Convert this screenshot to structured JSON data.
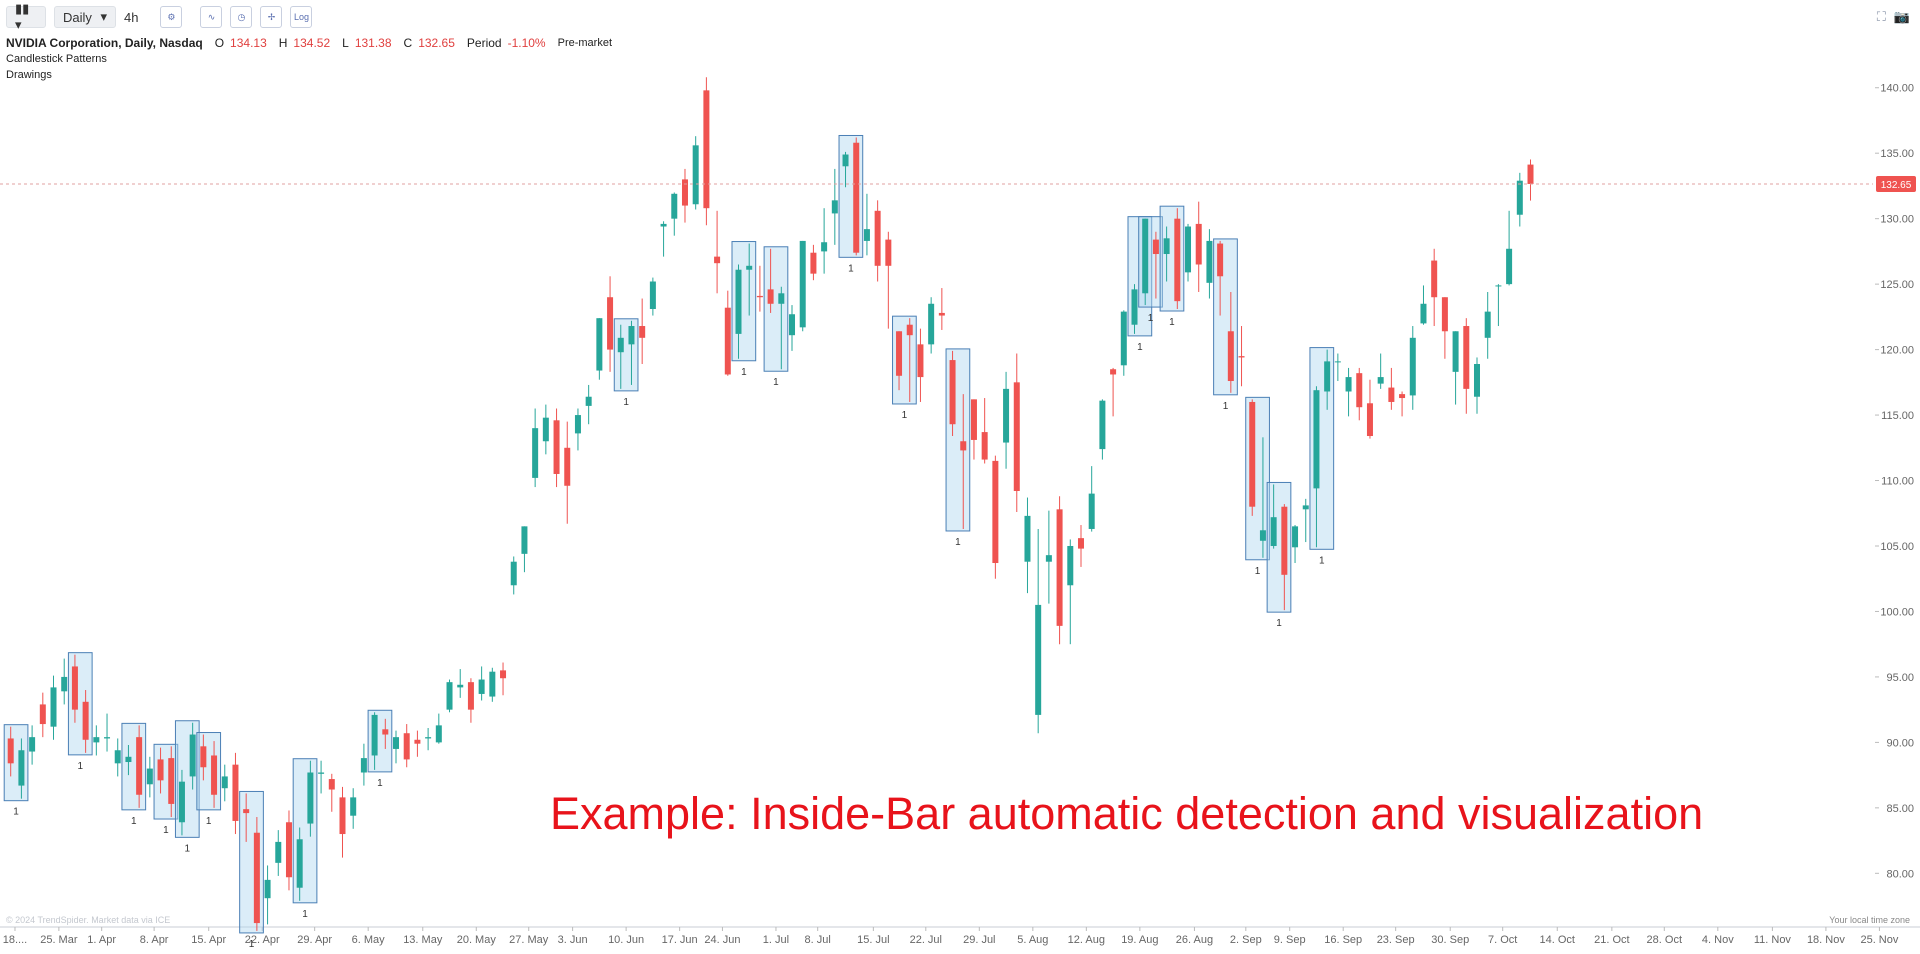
{
  "toolbar": {
    "interval": "Daily",
    "alt_interval": "4h",
    "log": "Log"
  },
  "legend": {
    "title": "NVIDIA Corporation, Daily, Nasdaq",
    "open_label": "O",
    "high_label": "H",
    "low_label": "L",
    "close_label": "C",
    "period_label": "Period",
    "period_change": "-1.10%",
    "session": "Pre-market",
    "indicators": [
      "Candlestick Patterns",
      "Drawings"
    ]
  },
  "chart_data": {
    "type": "candlestick",
    "annotation": "Example: Inside-Bar automatic detection and visualization",
    "footer_left": "© 2024 TrendSpider. Market data via ICE",
    "footer_right": "Your local time zone",
    "up_color": "#26a69a",
    "down_color": "#ef5350",
    "pattern_color": "#4a7fb5",
    "grid": false,
    "last_price_line": true,
    "ylim": [
      75.9,
      142.5
    ],
    "yticks": [
      {
        "value": 80,
        "label": "80.00"
      },
      {
        "value": 85,
        "label": "85.00"
      },
      {
        "value": 90,
        "label": "90.00"
      },
      {
        "value": 95,
        "label": "95.00"
      },
      {
        "value": 100,
        "label": "100.00"
      },
      {
        "value": 105,
        "label": "105.00"
      },
      {
        "value": 110,
        "label": "110.00"
      },
      {
        "value": 115,
        "label": "115.00"
      },
      {
        "value": 120,
        "label": "120.00"
      },
      {
        "value": 125,
        "label": "125.00"
      },
      {
        "value": 130,
        "label": "130.00"
      },
      {
        "value": 135,
        "label": "135.00"
      },
      {
        "value": 140,
        "label": "140.00"
      }
    ],
    "xlim": [
      -1,
      174
    ],
    "xticks": [
      {
        "value": 0.4,
        "label": "18...."
      },
      {
        "value": 4.5,
        "label": "25. Mar"
      },
      {
        "value": 8.5,
        "label": "1. Apr"
      },
      {
        "value": 13.4,
        "label": "8. Apr"
      },
      {
        "value": 18.5,
        "label": "15. Apr"
      },
      {
        "value": 23.5,
        "label": "22. Apr"
      },
      {
        "value": 28.4,
        "label": "29. Apr"
      },
      {
        "value": 33.4,
        "label": "6. May"
      },
      {
        "value": 38.5,
        "label": "13. May"
      },
      {
        "value": 43.5,
        "label": "20. May"
      },
      {
        "value": 48.4,
        "label": "27. May"
      },
      {
        "value": 52.5,
        "label": "3. Jun"
      },
      {
        "value": 57.5,
        "label": "10. Jun"
      },
      {
        "value": 62.5,
        "label": "17. Jun"
      },
      {
        "value": 66.5,
        "label": "24. Jun"
      },
      {
        "value": 71.5,
        "label": "1. Jul"
      },
      {
        "value": 75.4,
        "label": "8. Jul"
      },
      {
        "value": 80.6,
        "label": "15. Jul"
      },
      {
        "value": 85.5,
        "label": "22. Jul"
      },
      {
        "value": 90.5,
        "label": "29. Jul"
      },
      {
        "value": 95.5,
        "label": "5. Aug"
      },
      {
        "value": 100.5,
        "label": "12. Aug"
      },
      {
        "value": 105.5,
        "label": "19. Aug"
      },
      {
        "value": 110.6,
        "label": "26. Aug"
      },
      {
        "value": 115.4,
        "label": "2. Sep"
      },
      {
        "value": 119.5,
        "label": "9. Sep"
      },
      {
        "value": 124.5,
        "label": "16. Sep"
      },
      {
        "value": 129.4,
        "label": "23. Sep"
      },
      {
        "value": 134.5,
        "label": "30. Sep"
      },
      {
        "value": 139.4,
        "label": "7. Oct"
      },
      {
        "value": 144.5,
        "label": "14. Oct"
      },
      {
        "value": 149.6,
        "label": "21. Oct"
      },
      {
        "value": 154.5,
        "label": "28. Oct"
      },
      {
        "value": 159.5,
        "label": "4. Nov"
      },
      {
        "value": 164.6,
        "label": "11. Nov"
      },
      {
        "value": 169.6,
        "label": "18. Nov"
      },
      {
        "value": 174.6,
        "label": "25. Nov"
      }
    ],
    "open": [
      90.3,
      86.7,
      89.3,
      92.9,
      91.2,
      93.9,
      95.8,
      93.1,
      90.0,
      90.3,
      88.4,
      88.5,
      90.4,
      86.8,
      88.7,
      88.8,
      83.9,
      87.4,
      89.7,
      89.0,
      86.5,
      88.3,
      84.9,
      83.1,
      78.1,
      80.8,
      83.9,
      78.9,
      83.8,
      87.6,
      87.2,
      85.8,
      84.4,
      87.7,
      89.0,
      91.0,
      89.5,
      90.7,
      90.2,
      90.3,
      90.0,
      92.5,
      94.2,
      94.6,
      93.7,
      93.5,
      95.5,
      102.0,
      104.4,
      110.2,
      113.0,
      114.6,
      112.5,
      113.6,
      115.7,
      118.4,
      124.0,
      119.8,
      120.4,
      121.8,
      123.1,
      129.4,
      130.0,
      133.0,
      131.1,
      139.8,
      127.1,
      123.2,
      121.2,
      126.1,
      124.1,
      124.6,
      123.5,
      121.1,
      121.7,
      127.4,
      127.5,
      130.4,
      134.0,
      135.8,
      128.3,
      130.6,
      128.4,
      121.4,
      121.9,
      120.4,
      120.4,
      122.8,
      119.2,
      113.0,
      116.2,
      113.7,
      111.5,
      112.9,
      117.5,
      103.8,
      92.1,
      103.8,
      107.8,
      102.0,
      105.6,
      106.3,
      112.4,
      118.5,
      118.8,
      121.9,
      124.3,
      128.4,
      127.3,
      130.0,
      125.9,
      129.6,
      125.1,
      128.1,
      121.4,
      119.5,
      116.0,
      105.4,
      105.0,
      108.0,
      104.9,
      107.8,
      109.4,
      116.8,
      119.1,
      116.8,
      118.2,
      115.9,
      117.4,
      117.1,
      116.6,
      116.5,
      122.0,
      126.8,
      124.0,
      118.3,
      121.8,
      116.4,
      120.9,
      124.9,
      125.0,
      130.3,
      134.13
    ],
    "high": [
      91.2,
      90.3,
      91.3,
      93.8,
      95.1,
      96.4,
      96.7,
      94.0,
      91.3,
      92.2,
      90.3,
      89.8,
      91.3,
      88.9,
      89.6,
      89.7,
      87.9,
      91.5,
      90.6,
      90.1,
      88.3,
      89.2,
      86.1,
      84.3,
      80.6,
      83.3,
      84.8,
      83.5,
      88.6,
      88.6,
      87.6,
      86.6,
      86.5,
      89.9,
      92.3,
      91.8,
      90.9,
      91.4,
      90.9,
      91.1,
      92.2,
      94.8,
      95.6,
      94.9,
      95.8,
      95.7,
      96.1,
      104.2,
      106.5,
      115.5,
      115.8,
      115.5,
      114.5,
      115.5,
      117.3,
      122.4,
      125.6,
      121.9,
      122.2,
      123.9,
      125.5,
      129.8,
      132.0,
      133.8,
      136.3,
      140.8,
      130.6,
      124.5,
      126.5,
      128.1,
      126.4,
      127.7,
      124.8,
      123.4,
      128.3,
      128.0,
      130.8,
      133.8,
      135.1,
      136.2,
      131.9,
      131.4,
      129.0,
      121.4,
      122.4,
      121.6,
      124.0,
      124.7,
      119.9,
      116.6,
      116.2,
      116.3,
      111.9,
      118.3,
      119.7,
      108.7,
      106.3,
      107.7,
      108.8,
      105.5,
      106.6,
      111.1,
      116.2,
      118.6,
      123.0,
      125.0,
      130.0,
      129.0,
      129.4,
      130.8,
      129.6,
      131.3,
      129.2,
      128.3,
      124.4,
      121.8,
      116.2,
      113.3,
      109.7,
      108.2,
      106.6,
      108.6,
      117.2,
      120.0,
      119.7,
      118.6,
      118.6,
      117.7,
      119.7,
      118.6,
      116.8,
      121.8,
      124.9,
      127.7,
      124.0,
      121.4,
      122.4,
      119.4,
      124.4,
      125.0,
      130.6,
      133.5,
      134.52
    ],
    "low": [
      87.4,
      85.7,
      88.3,
      90.4,
      90.2,
      92.9,
      91.5,
      89.2,
      89.0,
      89.3,
      87.4,
      87.5,
      85.0,
      85.8,
      86.1,
      84.3,
      82.9,
      86.4,
      87.1,
      85.0,
      85.5,
      83.0,
      82.4,
      75.6,
      76.1,
      79.8,
      78.7,
      77.9,
      82.8,
      86.1,
      84.7,
      81.2,
      83.4,
      86.7,
      87.9,
      89.5,
      88.4,
      88.1,
      88.9,
      89.4,
      89.9,
      92.3,
      93.4,
      91.5,
      93.2,
      93.1,
      93.6,
      101.3,
      103.0,
      109.5,
      112.0,
      109.5,
      106.7,
      112.3,
      114.3,
      117.7,
      118.3,
      117.0,
      117.3,
      118.9,
      122.6,
      127.1,
      128.7,
      129.7,
      130.7,
      129.5,
      124.3,
      118.0,
      119.3,
      122.6,
      122.9,
      122.8,
      118.5,
      119.9,
      121.4,
      125.3,
      125.8,
      128.0,
      132.4,
      127.2,
      127.2,
      125.2,
      121.6,
      116.9,
      116.0,
      116.0,
      119.7,
      121.5,
      113.4,
      106.3,
      111.6,
      111.3,
      102.5,
      110.9,
      107.6,
      101.4,
      90.7,
      100.6,
      97.5,
      97.5,
      103.4,
      106.1,
      111.6,
      114.9,
      118.0,
      121.2,
      123.4,
      123.9,
      125.2,
      123.1,
      125.2,
      124.4,
      123.9,
      122.6,
      116.7,
      117.2,
      107.3,
      104.1,
      104.8,
      100.1,
      103.7,
      105.3,
      104.9,
      115.4,
      117.6,
      114.9,
      114.6,
      113.2,
      117.0,
      115.4,
      114.9,
      115.4,
      121.9,
      121.8,
      119.3,
      115.8,
      115.1,
      115.1,
      119.3,
      121.8,
      124.9,
      129.4,
      131.38
    ],
    "close": [
      88.4,
      89.4,
      90.4,
      91.4,
      94.2,
      95.0,
      92.5,
      90.2,
      90.4,
      90.4,
      89.4,
      88.9,
      86.0,
      88.0,
      87.1,
      85.3,
      87.0,
      90.6,
      88.1,
      86.0,
      87.4,
      84.0,
      84.6,
      76.2,
      79.5,
      82.4,
      79.7,
      82.6,
      87.7,
      87.7,
      86.4,
      83.0,
      85.8,
      88.8,
      92.1,
      90.6,
      90.4,
      88.7,
      89.9,
      90.4,
      91.3,
      94.6,
      94.4,
      92.5,
      94.8,
      95.4,
      94.9,
      103.8,
      106.5,
      114.0,
      114.8,
      110.5,
      109.6,
      115.0,
      116.4,
      122.4,
      120.0,
      120.9,
      121.8,
      120.9,
      125.2,
      129.6,
      131.9,
      131.0,
      135.6,
      130.8,
      126.6,
      118.1,
      126.1,
      126.4,
      124.0,
      123.5,
      124.3,
      122.7,
      128.3,
      125.8,
      128.2,
      131.4,
      134.9,
      127.4,
      129.2,
      126.4,
      126.4,
      118.0,
      121.1,
      117.9,
      123.5,
      122.6,
      114.3,
      112.3,
      113.1,
      111.6,
      103.7,
      117.0,
      109.2,
      107.3,
      100.5,
      104.3,
      98.9,
      105.0,
      104.8,
      109.0,
      116.1,
      118.1,
      122.9,
      124.6,
      130.0,
      127.3,
      128.5,
      123.7,
      129.4,
      126.5,
      128.3,
      125.6,
      117.6,
      119.4,
      108.0,
      106.2,
      107.2,
      102.8,
      106.5,
      108.1,
      116.9,
      119.1,
      119.1,
      117.9,
      115.6,
      113.4,
      117.9,
      116.0,
      116.3,
      120.9,
      123.5,
      124.0,
      121.4,
      121.4,
      117.0,
      118.9,
      122.9,
      124.9,
      127.7,
      132.9,
      132.65
    ],
    "patterns": [
      {
        "bars": [
          0,
          1
        ],
        "label": "1"
      },
      {
        "bars": [
          6,
          7
        ],
        "label": "1"
      },
      {
        "bars": [
          11,
          12
        ],
        "label": "1"
      },
      {
        "bars": [
          14,
          15
        ],
        "label": "1"
      },
      {
        "bars": [
          16,
          17
        ],
        "label": "1"
      },
      {
        "bars": [
          18,
          19
        ],
        "label": "1"
      },
      {
        "bars": [
          22,
          23
        ],
        "label": "1"
      },
      {
        "bars": [
          27,
          28
        ],
        "label": "1"
      },
      {
        "bars": [
          34,
          35
        ],
        "label": "1"
      },
      {
        "bars": [
          57,
          58
        ],
        "label": "1"
      },
      {
        "bars": [
          68,
          69
        ],
        "label": "1"
      },
      {
        "bars": [
          71,
          72
        ],
        "label": "1"
      },
      {
        "bars": [
          78,
          79
        ],
        "label": "1"
      },
      {
        "bars": [
          83,
          84
        ],
        "label": "1"
      },
      {
        "bars": [
          88,
          89
        ],
        "label": "1"
      },
      {
        "bars": [
          105,
          106
        ],
        "label": "1"
      },
      {
        "bars": [
          106,
          107
        ],
        "label": "1"
      },
      {
        "bars": [
          108,
          109
        ],
        "label": "1"
      },
      {
        "bars": [
          113,
          114
        ],
        "label": "1"
      },
      {
        "bars": [
          116,
          117
        ],
        "label": "1"
      },
      {
        "bars": [
          118,
          119
        ],
        "label": "1"
      },
      {
        "bars": [
          122,
          123
        ],
        "label": "1"
      }
    ]
  }
}
